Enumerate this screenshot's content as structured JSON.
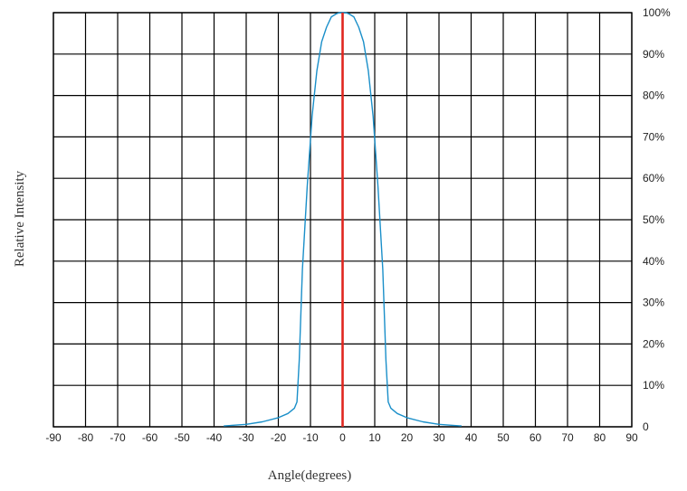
{
  "chart_data": {
    "type": "line",
    "title": "",
    "xlabel": "Angle(degrees)",
    "ylabel": "Relative Intensity",
    "xlim": [
      -90,
      90
    ],
    "ylim": [
      0,
      100
    ],
    "x_ticks": [
      -90,
      -80,
      -70,
      -60,
      -50,
      -40,
      -30,
      -20,
      -10,
      0,
      10,
      20,
      30,
      40,
      50,
      60,
      70,
      80,
      90
    ],
    "x_tick_labels": [
      "-90",
      "-80",
      "-70",
      "-60",
      "-50",
      "-40",
      "-30",
      "-20",
      "-10",
      "0",
      "10",
      "20",
      "30",
      "40",
      "50",
      "60",
      "70",
      "80",
      "90"
    ],
    "y_ticks": [
      0,
      10,
      20,
      30,
      40,
      50,
      60,
      70,
      80,
      90,
      100
    ],
    "y_tick_labels": [
      "0",
      "10%",
      "20%",
      "30%",
      "40%",
      "50%",
      "60%",
      "70%",
      "80%",
      "90%",
      "100%"
    ],
    "y_axis_side": "right",
    "grid": true,
    "series": [
      {
        "color": "#1a8fc9",
        "x": [
          -37,
          -30,
          -25,
          -20,
          -17,
          -15,
          -14.2,
          -13.5,
          -12.5,
          -11,
          -9.5,
          -8,
          -6.5,
          -5,
          -3.5,
          -2,
          -1,
          0,
          1,
          2,
          3.5,
          5,
          6.5,
          8,
          9.5,
          11,
          12.5,
          13.5,
          14.2,
          15,
          17,
          20,
          25,
          30,
          37
        ],
        "y": [
          0.2,
          0.6,
          1.2,
          2.2,
          3.2,
          4.5,
          6,
          16,
          38,
          58,
          75,
          86,
          93,
          96.5,
          99,
          99.7,
          100,
          100,
          100,
          99.7,
          99,
          96.5,
          93,
          86,
          75,
          58,
          38,
          16,
          6,
          4.5,
          3.2,
          2.2,
          1.2,
          0.6,
          0.2
        ]
      }
    ],
    "reference_line": {
      "x": 0,
      "color": "#e0261f"
    }
  }
}
